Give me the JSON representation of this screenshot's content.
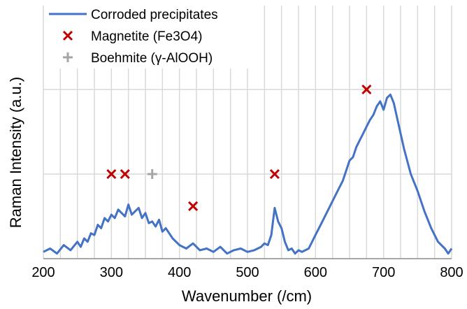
{
  "chart_data": {
    "type": "line",
    "title": "",
    "xlabel": "Wavenumber (/cm)",
    "ylabel": "Raman Intensity (a.u.)",
    "xlim": [
      200,
      800
    ],
    "ylim": [
      0,
      100
    ],
    "x_ticks": [
      200,
      300,
      400,
      500,
      600,
      700,
      800
    ],
    "x_tick_labels": [
      "200",
      "300",
      "400",
      "500",
      "600",
      "700",
      "800"
    ],
    "grid": "vertical every 25 /cm, horizontal at 50 and 100",
    "legend_position": "top-left",
    "legend": [
      "Corroded precipitates",
      "Magnetite (Fe3O4)",
      "Boehmite (γ-AlOOH)"
    ],
    "series": [
      {
        "name": "Corroded precipitates",
        "kind": "line",
        "color": "#4472c4",
        "x": [
          200,
          210,
          220,
          230,
          240,
          250,
          255,
          260,
          265,
          270,
          275,
          280,
          285,
          290,
          295,
          300,
          305,
          310,
          315,
          320,
          325,
          330,
          335,
          340,
          345,
          350,
          355,
          360,
          365,
          370,
          375,
          380,
          390,
          400,
          410,
          420,
          430,
          440,
          450,
          460,
          470,
          480,
          490,
          500,
          510,
          520,
          525,
          530,
          535,
          540,
          545,
          550,
          555,
          560,
          565,
          570,
          575,
          580,
          590,
          600,
          610,
          620,
          630,
          640,
          650,
          655,
          660,
          665,
          670,
          675,
          680,
          685,
          690,
          695,
          700,
          705,
          710,
          715,
          720,
          725,
          730,
          740,
          750,
          760,
          770,
          780,
          790,
          795,
          800
        ],
        "y": [
          4,
          6,
          3,
          8,
          5,
          10,
          7,
          12,
          10,
          15,
          14,
          20,
          18,
          24,
          22,
          26,
          24,
          29,
          27,
          25,
          32,
          26,
          28,
          30,
          24,
          27,
          21,
          22,
          19,
          23,
          16,
          18,
          12,
          8,
          6,
          9,
          5,
          6,
          4,
          7,
          3,
          5,
          6,
          4,
          5,
          7,
          9,
          8,
          14,
          30,
          22,
          18,
          10,
          5,
          6,
          3,
          5,
          4,
          6,
          14,
          22,
          30,
          38,
          46,
          58,
          60,
          66,
          70,
          74,
          78,
          82,
          85,
          90,
          93,
          88,
          95,
          97,
          92,
          83,
          74,
          65,
          50,
          40,
          28,
          18,
          10,
          6,
          3,
          6
        ]
      },
      {
        "name": "Magnetite (Fe3O4)",
        "kind": "markers",
        "marker": "x",
        "color": "#c00000",
        "points": [
          [
            300,
            50
          ],
          [
            320,
            50
          ],
          [
            420,
            31
          ],
          [
            540,
            50
          ],
          [
            675,
            100
          ]
        ]
      },
      {
        "name": "Boehmite (γ-AlOOH)",
        "kind": "markers",
        "marker": "+",
        "color": "#a6a6a6",
        "points": [
          [
            360,
            50
          ]
        ]
      }
    ]
  }
}
